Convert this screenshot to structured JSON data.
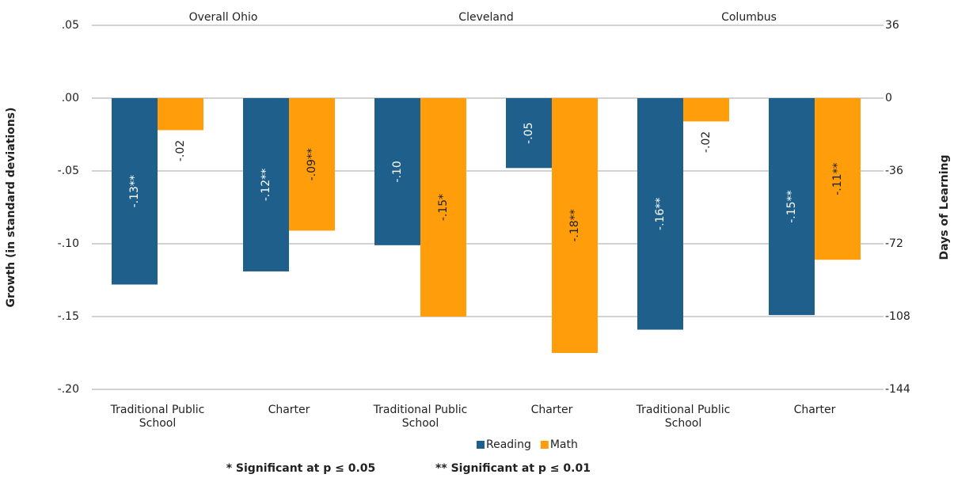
{
  "chart_data": {
    "type": "bar",
    "groups": [
      "Overall Ohio",
      "Cleveland",
      "Columbus"
    ],
    "categories": [
      "Traditional Public School",
      "Charter",
      "Traditional Public School",
      "Charter",
      "Traditional Public School",
      "Charter"
    ],
    "series": [
      {
        "name": "Reading",
        "color": "#1f5f8b",
        "values": [
          -0.128,
          -0.119,
          -0.101,
          -0.048,
          -0.159,
          -0.149
        ],
        "value_labels": [
          "-.13**",
          "-.12**",
          "-.10",
          "-.05",
          "-.16**",
          "-.15**"
        ]
      },
      {
        "name": "Math",
        "color": "#ff9d0b",
        "values": [
          -0.022,
          -0.091,
          -0.15,
          -0.175,
          -0.016,
          -0.111
        ],
        "value_labels": [
          "-.02",
          "-.09**",
          "-.15*",
          "-.18**",
          "-.02",
          "-.11**"
        ]
      }
    ],
    "y_label": "Growth (in standard deviations)",
    "y2_label": "Days of Learning",
    "ylim": [
      -0.2,
      0.05
    ],
    "yticks": [
      {
        "value": -0.2,
        "label": "-.20"
      },
      {
        "value": -0.15,
        "label": "-.15"
      },
      {
        "value": -0.1,
        "label": "-.10"
      },
      {
        "value": -0.05,
        "label": "-.05"
      },
      {
        "value": 0,
        "label": ".00"
      },
      {
        "value": 0.05,
        "label": ".05"
      }
    ],
    "y2lim": [
      -144,
      36
    ],
    "y2ticks": [
      -144,
      -108,
      -72,
      -36,
      0,
      36
    ],
    "grid": true,
    "legend": "bottom",
    "footnotes": [
      "* Significant at p ≤ 0.05",
      "** Significant at p ≤ 0.01"
    ]
  }
}
